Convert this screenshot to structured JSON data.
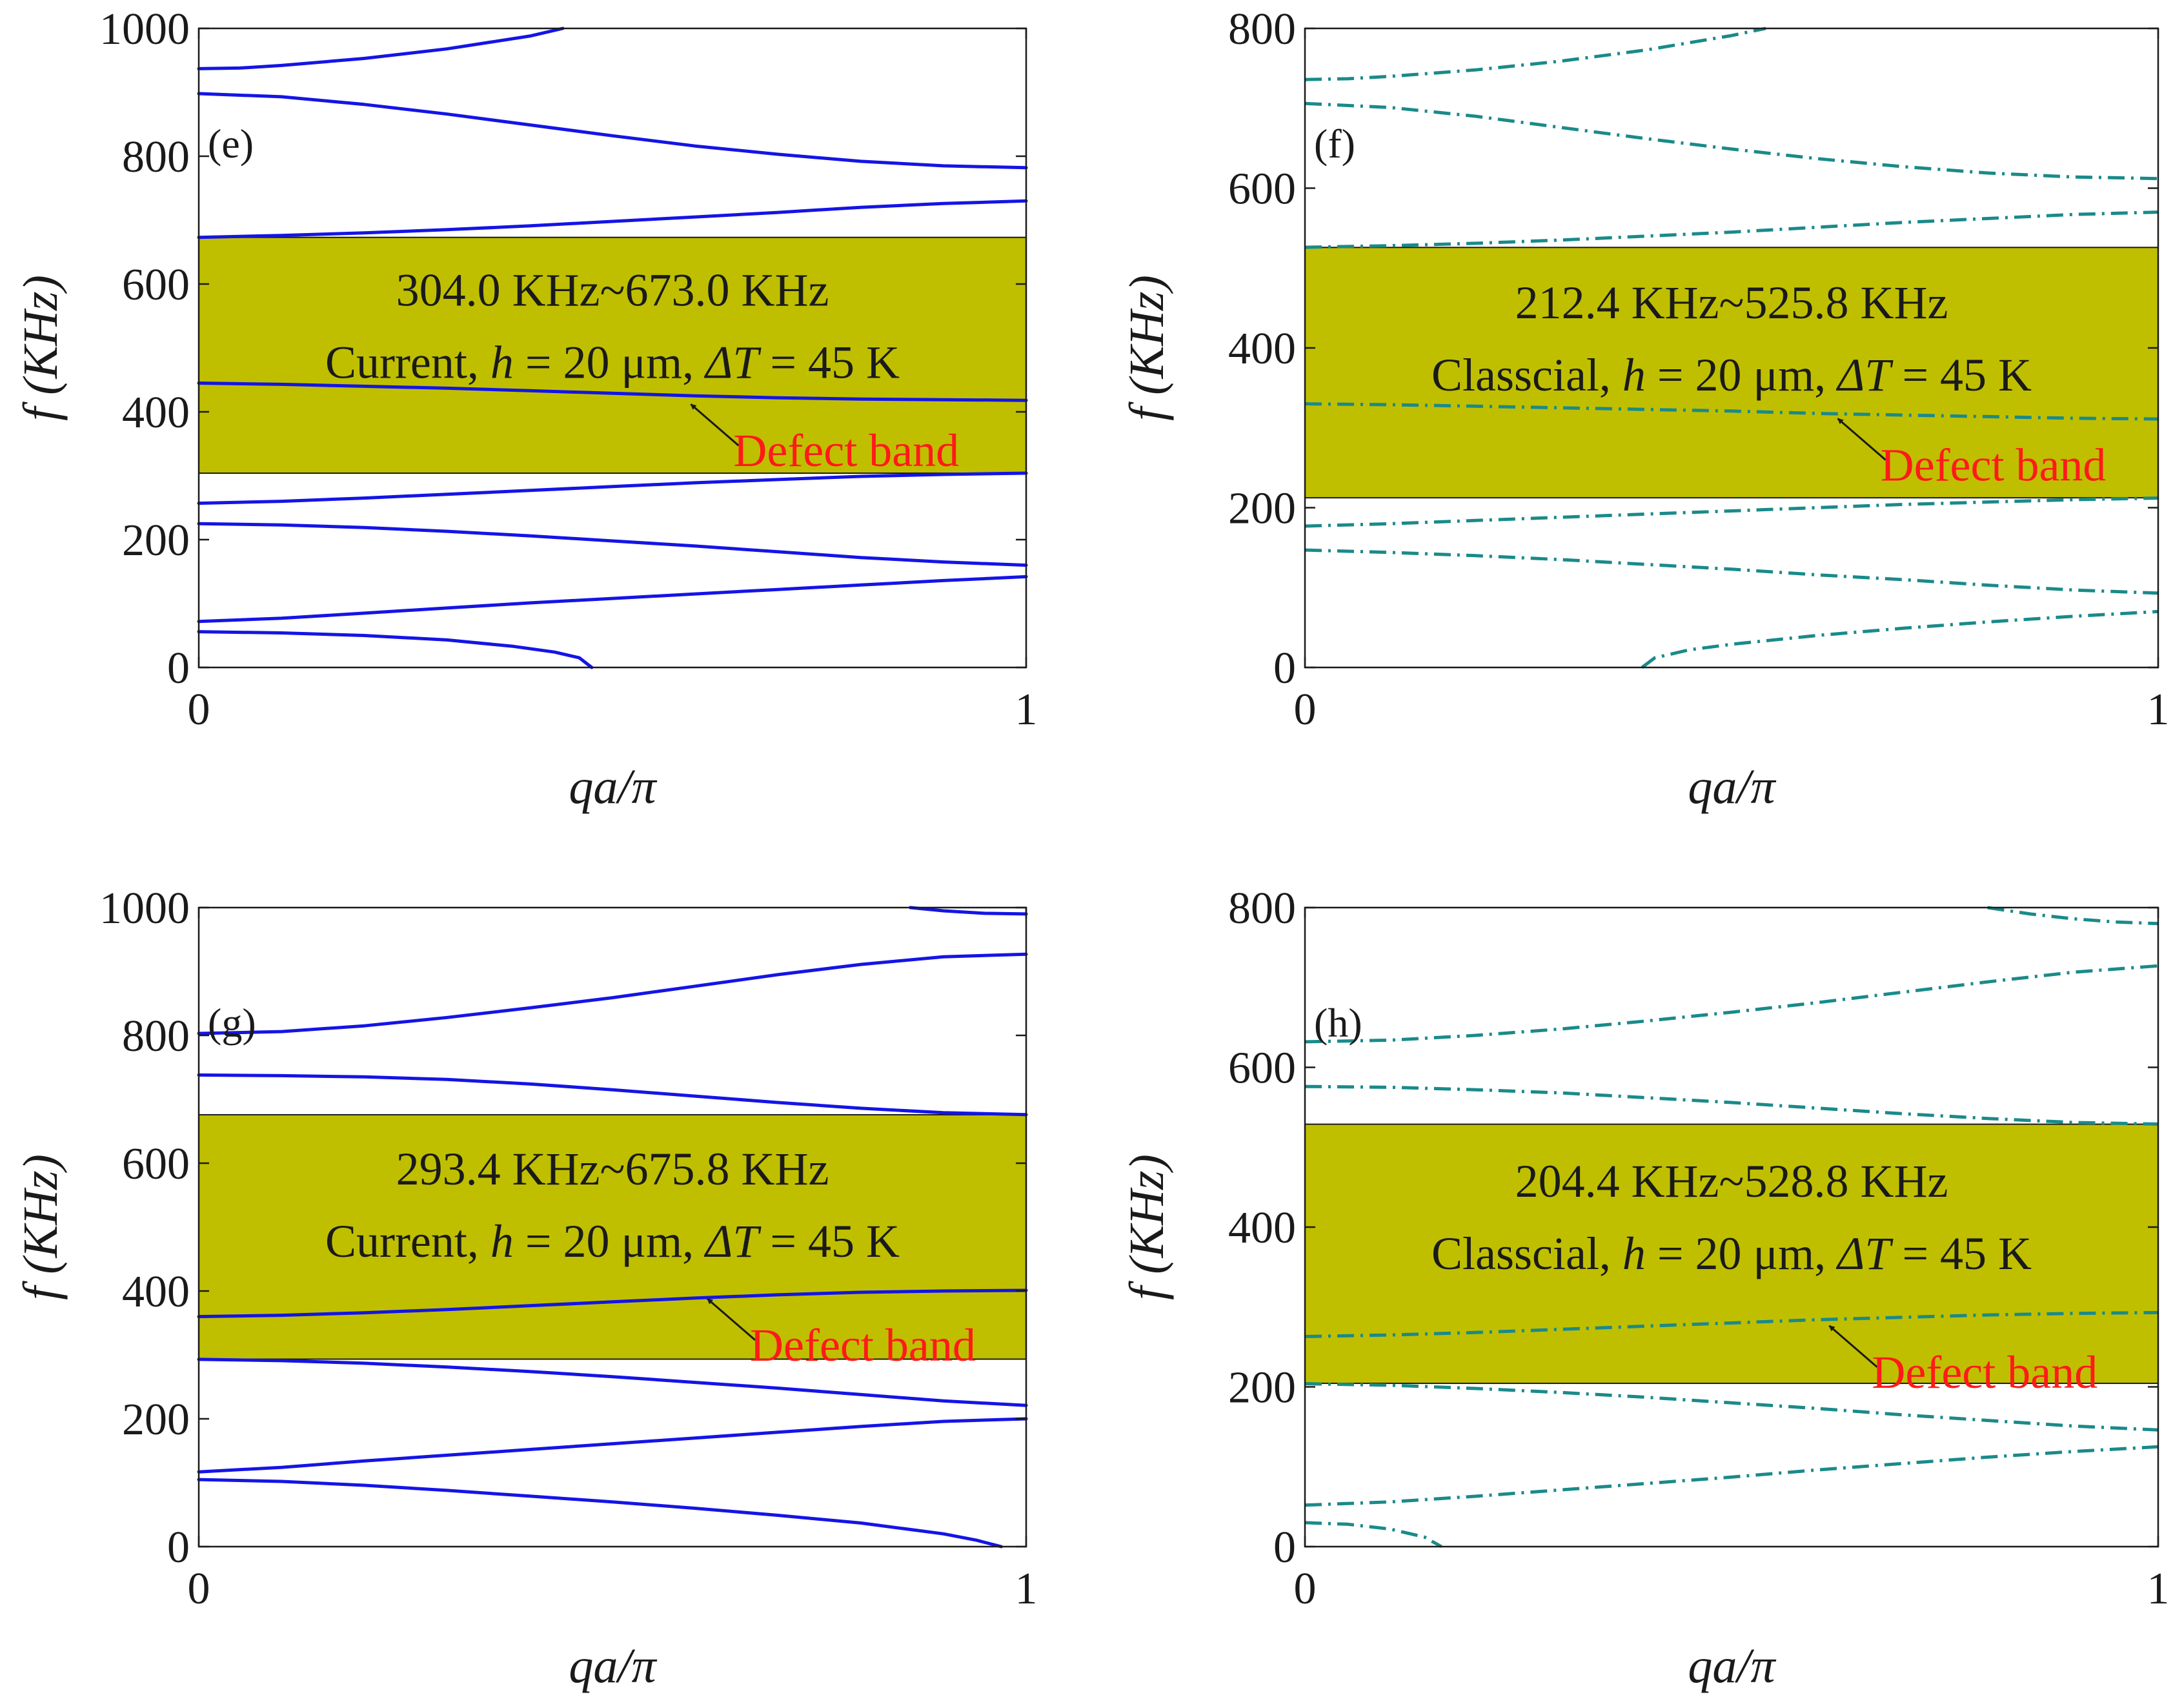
{
  "colors": {
    "gap_fill": "#bfbf00",
    "current_line": "#1414e6",
    "classical_line": "#1a8a8a",
    "defect_label": "#ff1a1a"
  },
  "chart_data": [
    {
      "id": "e",
      "type": "line",
      "panel_label": "(e)",
      "xlabel": "qa/π",
      "ylabel": "f (KHz)",
      "xlim": [
        0,
        1
      ],
      "ylim": [
        0,
        1000
      ],
      "xticks": [
        0,
        1
      ],
      "yticks": [
        0,
        200,
        400,
        600,
        800,
        1000
      ],
      "line_style": "solid",
      "band_gap": {
        "low": 304.0,
        "high": 673.0
      },
      "annotation_line1": "304.0 KHz~673.0 KHz",
      "annotation_line2": {
        "model": "Current",
        "h_sym": "h",
        "h_val": " = 20 μm, ",
        "t_sym": "ΔT",
        "t_val": " = 45 K"
      },
      "defect_label": "Defect band",
      "defect_point": [
        0.59,
        420
      ],
      "series": [
        {
          "name": "branch 1",
          "x": [
            0,
            0.1,
            0.2,
            0.3,
            0.38,
            0.43,
            0.46,
            0.475
          ],
          "y": [
            56,
            54,
            50,
            43,
            33,
            24,
            15,
            0
          ]
        },
        {
          "name": "branch 2",
          "x": [
            0,
            0.1,
            0.2,
            0.3,
            0.4,
            0.5,
            0.6,
            0.7,
            0.8,
            0.9,
            1
          ],
          "y": [
            72,
            77,
            85,
            93,
            101,
            108,
            115,
            122,
            129,
            136,
            142
          ]
        },
        {
          "name": "branch 3",
          "x": [
            0,
            0.1,
            0.2,
            0.3,
            0.4,
            0.5,
            0.6,
            0.7,
            0.8,
            0.9,
            1
          ],
          "y": [
            225,
            223,
            219,
            213,
            206,
            198,
            190,
            181,
            172,
            165,
            160
          ]
        },
        {
          "name": "branch 4",
          "x": [
            0,
            0.1,
            0.2,
            0.3,
            0.4,
            0.5,
            0.6,
            0.7,
            0.8,
            0.9,
            1
          ],
          "y": [
            257,
            260,
            265,
            271,
            277,
            283,
            289,
            294,
            299,
            302,
            304
          ]
        },
        {
          "name": "defect band",
          "x": [
            0,
            0.1,
            0.2,
            0.3,
            0.4,
            0.5,
            0.6,
            0.7,
            0.8,
            0.9,
            1
          ],
          "y": [
            445,
            443,
            440,
            437,
            433,
            429,
            425,
            422,
            420,
            419,
            418
          ]
        },
        {
          "name": "branch 6",
          "x": [
            0,
            0.1,
            0.2,
            0.3,
            0.4,
            0.5,
            0.6,
            0.7,
            0.8,
            0.9,
            1
          ],
          "y": [
            673,
            676,
            680,
            685,
            691,
            698,
            705,
            712,
            720,
            726,
            730
          ]
        },
        {
          "name": "branch 7",
          "x": [
            0,
            0.1,
            0.2,
            0.3,
            0.4,
            0.5,
            0.6,
            0.7,
            0.8,
            0.9,
            1
          ],
          "y": [
            898,
            893,
            881,
            866,
            849,
            832,
            816,
            803,
            792,
            785,
            782
          ]
        },
        {
          "name": "branch 8",
          "x": [
            0,
            0.05,
            0.1,
            0.2,
            0.3,
            0.4,
            0.44
          ],
          "y": [
            937,
            938,
            942,
            953,
            968,
            988,
            1000
          ]
        }
      ]
    },
    {
      "id": "f",
      "type": "line",
      "panel_label": "(f)",
      "xlabel": "qa/π",
      "ylabel": "f (KHz)",
      "xlim": [
        0,
        1
      ],
      "ylim": [
        0,
        800
      ],
      "xticks": [
        0,
        1
      ],
      "yticks": [
        0,
        200,
        400,
        600,
        800
      ],
      "line_style": "dashdot",
      "band_gap": {
        "low": 212.4,
        "high": 525.8
      },
      "annotation_line1": "212.4 KHz~525.8 KHz",
      "annotation_line2": {
        "model": "Classcial",
        "h_sym": "h",
        "h_val": " = 20 μm, ",
        "t_sym": "ΔT",
        "t_val": " = 45 K"
      },
      "defect_label": "Defect band",
      "defect_point": [
        0.62,
        318
      ],
      "series": [
        {
          "name": "branch 1",
          "x": [
            0.395,
            0.41,
            0.45,
            0.5,
            0.6,
            0.7,
            0.8,
            0.9,
            1
          ],
          "y": [
            0,
            12,
            22,
            29,
            40,
            49,
            57,
            64,
            70
          ]
        },
        {
          "name": "branch 2",
          "x": [
            0,
            0.1,
            0.2,
            0.3,
            0.4,
            0.5,
            0.6,
            0.7,
            0.8,
            0.9,
            1
          ],
          "y": [
            147,
            144,
            140,
            135,
            129,
            123,
            116,
            110,
            103,
            97,
            93
          ]
        },
        {
          "name": "branch 3",
          "x": [
            0,
            0.1,
            0.2,
            0.3,
            0.4,
            0.5,
            0.6,
            0.7,
            0.8,
            0.9,
            1
          ],
          "y": [
            177,
            180,
            184,
            188,
            192,
            196,
            200,
            204,
            207,
            210,
            212
          ]
        },
        {
          "name": "defect band",
          "x": [
            0,
            0.1,
            0.2,
            0.3,
            0.4,
            0.5,
            0.6,
            0.7,
            0.8,
            0.9,
            1
          ],
          "y": [
            330,
            329,
            327,
            325,
            323,
            321,
            318,
            316,
            314,
            312,
            311
          ]
        },
        {
          "name": "branch 5",
          "x": [
            0,
            0.1,
            0.2,
            0.3,
            0.4,
            0.5,
            0.6,
            0.7,
            0.8,
            0.9,
            1
          ],
          "y": [
            526,
            528,
            531,
            535,
            540,
            545,
            551,
            557,
            562,
            567,
            570
          ]
        },
        {
          "name": "branch 6",
          "x": [
            0,
            0.1,
            0.2,
            0.3,
            0.4,
            0.5,
            0.6,
            0.7,
            0.8,
            0.9,
            1
          ],
          "y": [
            706,
            701,
            690,
            676,
            662,
            649,
            637,
            627,
            619,
            614,
            612
          ]
        },
        {
          "name": "branch 7",
          "x": [
            0,
            0.05,
            0.1,
            0.2,
            0.3,
            0.4,
            0.5,
            0.54
          ],
          "y": [
            736,
            737,
            740,
            748,
            759,
            773,
            791,
            800
          ]
        }
      ]
    },
    {
      "id": "g",
      "type": "line",
      "panel_label": "(g)",
      "xlabel": "qa/π",
      "ylabel": "f (KHz)",
      "xlim": [
        0,
        1
      ],
      "ylim": [
        0,
        1000
      ],
      "xticks": [
        0,
        1
      ],
      "yticks": [
        0,
        200,
        400,
        600,
        800,
        1000
      ],
      "line_style": "solid",
      "band_gap": {
        "low": 293.4,
        "high": 675.8
      },
      "annotation_line1": "293.4 KHz~675.8 KHz",
      "annotation_line2": {
        "model": "Current",
        "h_sym": "h",
        "h_val": " = 20 μm, ",
        "t_sym": "ΔT",
        "t_val": " = 45 K"
      },
      "defect_label": "Defect band",
      "defect_point": [
        0.61,
        396
      ],
      "series": [
        {
          "name": "branch 1",
          "x": [
            0,
            0.1,
            0.2,
            0.3,
            0.4,
            0.5,
            0.6,
            0.7,
            0.8,
            0.9,
            0.94,
            0.97
          ],
          "y": [
            105,
            102,
            96,
            88,
            79,
            70,
            60,
            49,
            37,
            20,
            10,
            0
          ]
        },
        {
          "name": "branch 2",
          "x": [
            0,
            0.1,
            0.2,
            0.3,
            0.4,
            0.5,
            0.6,
            0.7,
            0.8,
            0.9,
            1
          ],
          "y": [
            117,
            124,
            134,
            143,
            152,
            161,
            170,
            179,
            188,
            196,
            200
          ]
        },
        {
          "name": "branch 3",
          "x": [
            0,
            0.1,
            0.2,
            0.3,
            0.4,
            0.5,
            0.6,
            0.7,
            0.8,
            0.9,
            1
          ],
          "y": [
            293,
            291,
            287,
            281,
            274,
            266,
            257,
            248,
            238,
            228,
            221
          ]
        },
        {
          "name": "defect band",
          "x": [
            0,
            0.1,
            0.2,
            0.3,
            0.4,
            0.5,
            0.6,
            0.7,
            0.8,
            0.9,
            1
          ],
          "y": [
            360,
            362,
            366,
            371,
            377,
            383,
            389,
            394,
            398,
            400,
            401
          ]
        },
        {
          "name": "branch 5",
          "x": [
            0,
            0.1,
            0.2,
            0.3,
            0.4,
            0.5,
            0.6,
            0.7,
            0.8,
            0.9,
            1
          ],
          "y": [
            738,
            737,
            735,
            731,
            724,
            715,
            705,
            695,
            686,
            679,
            676
          ]
        },
        {
          "name": "branch 6",
          "x": [
            0,
            0.1,
            0.2,
            0.3,
            0.4,
            0.5,
            0.6,
            0.7,
            0.8,
            0.9,
            1
          ],
          "y": [
            803,
            806,
            815,
            828,
            843,
            859,
            877,
            895,
            911,
            923,
            927
          ]
        },
        {
          "name": "branch 7",
          "x": [
            0.86,
            0.9,
            0.95,
            1
          ],
          "y": [
            1000,
            995,
            991,
            990
          ]
        }
      ]
    },
    {
      "id": "h",
      "type": "line",
      "panel_label": "(h)",
      "xlabel": "qa/π",
      "ylabel": "f (KHz)",
      "xlim": [
        0,
        1
      ],
      "ylim": [
        0,
        800
      ],
      "xticks": [
        0,
        1
      ],
      "yticks": [
        0,
        200,
        400,
        600,
        800
      ],
      "line_style": "dashdot",
      "band_gap": {
        "low": 204.4,
        "high": 528.8
      },
      "annotation_line1": "204.4 KHz~528.8 KHz",
      "annotation_line2": {
        "model": "Classcial",
        "h_sym": "h",
        "h_val": " = 20 μm, ",
        "t_sym": "ΔT",
        "t_val": " = 45 K"
      },
      "defect_label": "Defect band",
      "defect_point": [
        0.61,
        283
      ],
      "series": [
        {
          "name": "branch 1",
          "x": [
            0,
            0.05,
            0.1,
            0.14,
            0.16
          ],
          "y": [
            30,
            28,
            22,
            12,
            0
          ]
        },
        {
          "name": "branch 2",
          "x": [
            0,
            0.1,
            0.2,
            0.3,
            0.4,
            0.5,
            0.6,
            0.7,
            0.8,
            0.9,
            1
          ],
          "y": [
            52,
            56,
            63,
            71,
            79,
            87,
            96,
            104,
            112,
            119,
            125
          ]
        },
        {
          "name": "branch 3",
          "x": [
            0,
            0.1,
            0.2,
            0.3,
            0.4,
            0.5,
            0.6,
            0.7,
            0.8,
            0.9,
            1
          ],
          "y": [
            204,
            202,
            198,
            193,
            187,
            180,
            173,
            165,
            158,
            151,
            146
          ]
        },
        {
          "name": "defect band",
          "x": [
            0,
            0.1,
            0.2,
            0.3,
            0.4,
            0.5,
            0.6,
            0.7,
            0.8,
            0.9,
            1
          ],
          "y": [
            263,
            265,
            268,
            272,
            276,
            280,
            284,
            287,
            290,
            292,
            293
          ]
        },
        {
          "name": "branch 5",
          "x": [
            0,
            0.1,
            0.2,
            0.3,
            0.4,
            0.5,
            0.6,
            0.7,
            0.8,
            0.9,
            1
          ],
          "y": [
            576,
            575,
            572,
            568,
            562,
            556,
            549,
            542,
            536,
            531,
            529
          ]
        },
        {
          "name": "branch 6",
          "x": [
            0,
            0.1,
            0.2,
            0.3,
            0.4,
            0.5,
            0.6,
            0.7,
            0.8,
            0.9,
            1
          ],
          "y": [
            632,
            634,
            640,
            648,
            658,
            669,
            681,
            694,
            707,
            719,
            727
          ]
        },
        {
          "name": "branch 7",
          "x": [
            0.8,
            0.85,
            0.9,
            0.95,
            1
          ],
          "y": [
            800,
            792,
            786,
            782,
            780
          ]
        }
      ]
    }
  ]
}
